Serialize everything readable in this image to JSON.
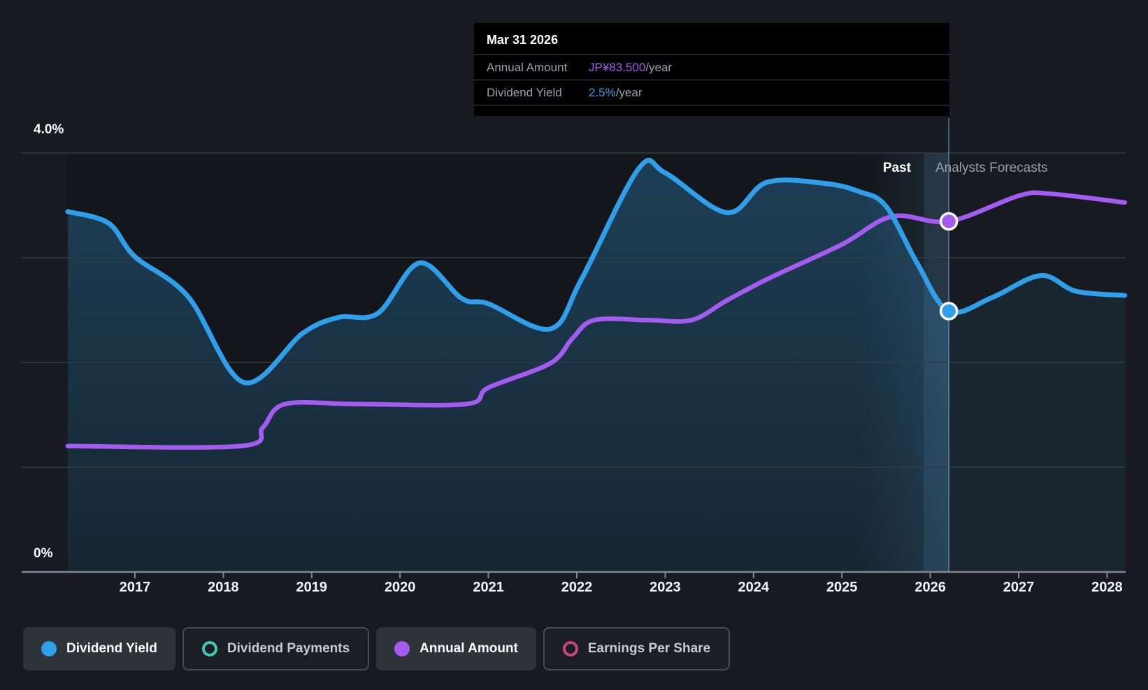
{
  "tooltip": {
    "date": "Mar 31 2026",
    "rows": [
      {
        "label": "Annual Amount",
        "value": "JP¥83.500",
        "suffix": "/year",
        "value_color": "#a45bef"
      },
      {
        "label": "Dividend Yield",
        "value": "2.5%",
        "suffix": "/year",
        "value_color": "#2e9fe8"
      }
    ]
  },
  "axis": {
    "y_top_label": "4.0%",
    "y_bottom_label": "0%",
    "year_ticks": [
      "2017",
      "2018",
      "2019",
      "2020",
      "2021",
      "2022",
      "2023",
      "2024",
      "2025",
      "2026",
      "2027",
      "2028"
    ]
  },
  "annotations": {
    "past": "Past",
    "forecast": "Analysts Forecasts"
  },
  "legend": [
    {
      "label": "Dividend Yield",
      "color": "#2e9fe8",
      "style": "filled",
      "active": true
    },
    {
      "label": "Dividend Payments",
      "color": "#3fc9b4",
      "style": "ring",
      "active": false
    },
    {
      "label": "Annual Amount",
      "color": "#a45bef",
      "style": "filled",
      "active": true
    },
    {
      "label": "Earnings Per Share",
      "color": "#c7487f",
      "style": "ring",
      "active": false
    }
  ],
  "chart_data": {
    "type": "line",
    "title": "Dividend yield history and forecast",
    "xlabel": "year",
    "x_range": [
      2016.24,
      2028.2
    ],
    "x_ticks": [
      2017,
      2018,
      2019,
      2020,
      2021,
      2022,
      2023,
      2024,
      2025,
      2026,
      2027,
      2028
    ],
    "forecast_start_x": 2026.21,
    "forecast_start_date": "Mar 31 2026",
    "grid_y_percent": [
      0,
      1,
      2,
      3,
      4
    ],
    "legend_position": "bottom",
    "series": [
      {
        "name": "Dividend Yield",
        "unit": "%",
        "color": "#2e9fe8",
        "area_fill": true,
        "ylim": [
          0,
          4
        ],
        "points": [
          [
            2016.24,
            3.44
          ],
          [
            2016.7,
            3.33
          ],
          [
            2017.0,
            3.01
          ],
          [
            2017.6,
            2.63
          ],
          [
            2018.23,
            1.81
          ],
          [
            2018.9,
            2.28
          ],
          [
            2019.3,
            2.43
          ],
          [
            2019.75,
            2.47
          ],
          [
            2020.22,
            2.95
          ],
          [
            2020.7,
            2.61
          ],
          [
            2021.0,
            2.56
          ],
          [
            2021.7,
            2.32
          ],
          [
            2022.05,
            2.79
          ],
          [
            2022.7,
            3.85
          ],
          [
            2023.0,
            3.81
          ],
          [
            2023.7,
            3.43
          ],
          [
            2024.15,
            3.72
          ],
          [
            2024.8,
            3.71
          ],
          [
            2025.2,
            3.63
          ],
          [
            2025.5,
            3.49
          ],
          [
            2025.85,
            2.95
          ],
          [
            2026.21,
            2.49
          ],
          [
            2026.7,
            2.62
          ],
          [
            2027.25,
            2.83
          ],
          [
            2027.65,
            2.68
          ],
          [
            2028.2,
            2.64
          ]
        ]
      },
      {
        "name": "Annual Amount",
        "unit": "JP¥/year",
        "color": "#a45bef",
        "area_fill": false,
        "ylim": [
          0,
          99.8
        ],
        "points": [
          [
            2016.24,
            30
          ],
          [
            2018.2,
            30
          ],
          [
            2018.45,
            34.5
          ],
          [
            2018.7,
            40
          ],
          [
            2019.5,
            40
          ],
          [
            2020.75,
            40
          ],
          [
            2021.0,
            43.9
          ],
          [
            2021.7,
            49.7
          ],
          [
            2021.95,
            55.6
          ],
          [
            2022.2,
            60
          ],
          [
            2022.8,
            60
          ],
          [
            2023.3,
            60
          ],
          [
            2023.7,
            64.7
          ],
          [
            2024.2,
            70.2
          ],
          [
            2025.0,
            78
          ],
          [
            2025.57,
            84.7
          ],
          [
            2026.21,
            83.5
          ],
          [
            2027.0,
            89.6
          ],
          [
            2027.35,
            90.1
          ],
          [
            2028.2,
            88
          ]
        ]
      }
    ],
    "markers": [
      {
        "series": "Dividend Yield",
        "x": 2026.21,
        "y": 2.49,
        "color": "#2e9fe8"
      },
      {
        "series": "Annual Amount",
        "x": 2026.21,
        "y": 83.5,
        "color": "#a45bef"
      }
    ]
  }
}
